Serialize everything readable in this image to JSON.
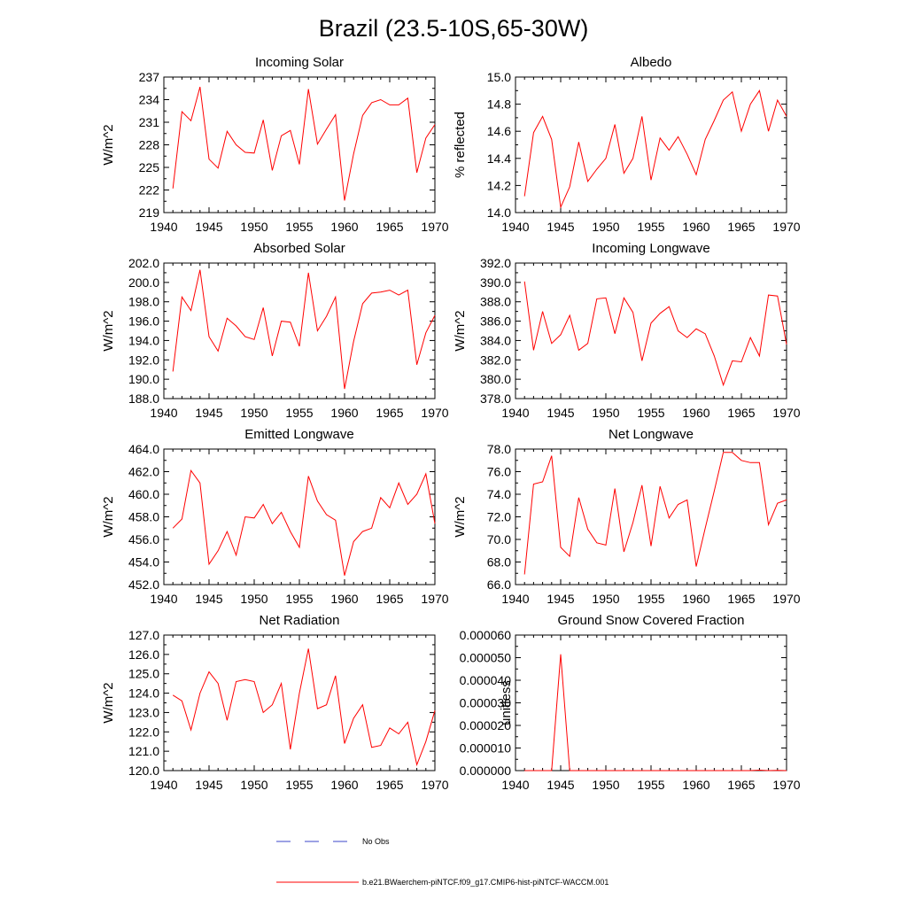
{
  "figure": {
    "title": "Brazil (23.5-10S,65-30W)",
    "series_color": "#ff0000",
    "noobs_color": "#3b45c8",
    "legend": [
      {
        "label": "No Obs",
        "style": "dashed",
        "color": "#3b45c8"
      },
      {
        "label": "b.e21.BWaerchem-piNTCF.f09_g17.CMIP6-hist-piNTCF-WACCM.001",
        "style": "solid",
        "color": "#ff0000"
      }
    ]
  },
  "chart_data": [
    {
      "type": "line",
      "title": "Incoming Solar",
      "xlabel": "",
      "ylabel": "W/m^2",
      "xlim": [
        1940,
        1970
      ],
      "ylim": [
        219,
        237
      ],
      "xticks": [
        1940,
        1945,
        1950,
        1955,
        1960,
        1965,
        1970
      ],
      "yticks": [
        "219",
        "222",
        "225",
        "228",
        "231",
        "234",
        "237"
      ],
      "x": [
        1941,
        1942,
        1943,
        1944,
        1945,
        1946,
        1947,
        1948,
        1949,
        1950,
        1951,
        1952,
        1953,
        1954,
        1955,
        1956,
        1957,
        1958,
        1959,
        1960,
        1961,
        1962,
        1963,
        1964,
        1965,
        1966,
        1967,
        1968,
        1969,
        1970
      ],
      "y": [
        222.2,
        232.4,
        231.2,
        235.7,
        226.1,
        224.9,
        229.8,
        228.0,
        227.0,
        226.9,
        231.3,
        224.6,
        229.2,
        229.9,
        225.4,
        235.4,
        228.1,
        230.1,
        232.0,
        220.6,
        226.8,
        231.9,
        233.6,
        234.0,
        233.3,
        233.3,
        234.2,
        224.3,
        228.9,
        230.7
      ]
    },
    {
      "type": "line",
      "title": "Albedo",
      "xlabel": "",
      "ylabel": "% reflected",
      "xlim": [
        1940,
        1970
      ],
      "ylim": [
        14.0,
        15.0
      ],
      "xticks": [
        1940,
        1945,
        1950,
        1955,
        1960,
        1965,
        1970
      ],
      "yticks": [
        "14.0",
        "14.2",
        "14.4",
        "14.6",
        "14.8",
        "15.0"
      ],
      "x": [
        1941,
        1942,
        1943,
        1944,
        1945,
        1946,
        1947,
        1948,
        1949,
        1950,
        1951,
        1952,
        1953,
        1954,
        1955,
        1956,
        1957,
        1958,
        1959,
        1960,
        1961,
        1962,
        1963,
        1964,
        1965,
        1966,
        1967,
        1968,
        1969,
        1970
      ],
      "y": [
        14.12,
        14.59,
        14.71,
        14.54,
        14.04,
        14.19,
        14.52,
        14.23,
        14.32,
        14.4,
        14.65,
        14.29,
        14.4,
        14.71,
        14.24,
        14.55,
        14.46,
        14.56,
        14.43,
        14.28,
        14.54,
        14.68,
        14.83,
        14.89,
        14.6,
        14.8,
        14.9,
        14.6,
        14.83,
        14.71
      ]
    },
    {
      "type": "line",
      "title": "Absorbed Solar",
      "xlabel": "",
      "ylabel": "W/m^2",
      "xlim": [
        1940,
        1970
      ],
      "ylim": [
        188.0,
        202.0
      ],
      "xticks": [
        1940,
        1945,
        1950,
        1955,
        1960,
        1965,
        1970
      ],
      "yticks": [
        "188.0",
        "190.0",
        "192.0",
        "194.0",
        "196.0",
        "198.0",
        "200.0",
        "202.0"
      ],
      "x": [
        1941,
        1942,
        1943,
        1944,
        1945,
        1946,
        1947,
        1948,
        1949,
        1950,
        1951,
        1952,
        1953,
        1954,
        1955,
        1956,
        1957,
        1958,
        1959,
        1960,
        1961,
        1962,
        1963,
        1964,
        1965,
        1966,
        1967,
        1968,
        1969,
        1970
      ],
      "y": [
        190.8,
        198.5,
        197.1,
        201.3,
        194.4,
        192.9,
        196.3,
        195.5,
        194.4,
        194.1,
        197.4,
        192.4,
        196.0,
        195.9,
        193.4,
        201.0,
        195.0,
        196.5,
        198.5,
        189.0,
        193.9,
        197.8,
        198.9,
        199.0,
        199.2,
        198.7,
        199.2,
        191.5,
        194.8,
        196.6
      ]
    },
    {
      "type": "line",
      "title": "Incoming Longwave",
      "xlabel": "",
      "ylabel": "W/m^2",
      "xlim": [
        1940,
        1970
      ],
      "ylim": [
        378.0,
        392.0
      ],
      "xticks": [
        1940,
        1945,
        1950,
        1955,
        1960,
        1965,
        1970
      ],
      "yticks": [
        "378.0",
        "380.0",
        "382.0",
        "384.0",
        "386.0",
        "388.0",
        "390.0",
        "392.0"
      ],
      "x": [
        1941,
        1942,
        1943,
        1944,
        1945,
        1946,
        1947,
        1948,
        1949,
        1950,
        1951,
        1952,
        1953,
        1954,
        1955,
        1956,
        1957,
        1958,
        1959,
        1960,
        1961,
        1962,
        1963,
        1964,
        1965,
        1966,
        1967,
        1968,
        1969,
        1970
      ],
      "y": [
        390.1,
        383.0,
        387.0,
        383.7,
        384.6,
        386.6,
        383.0,
        383.7,
        388.3,
        388.4,
        384.7,
        388.4,
        386.9,
        381.9,
        385.8,
        386.8,
        387.5,
        385.0,
        384.3,
        385.2,
        384.7,
        382.4,
        379.4,
        381.9,
        381.8,
        384.3,
        382.4,
        388.7,
        388.6,
        383.6
      ]
    },
    {
      "type": "line",
      "title": "Emitted Longwave",
      "xlabel": "",
      "ylabel": "W/m^2",
      "xlim": [
        1940,
        1970
      ],
      "ylim": [
        452.0,
        464.0
      ],
      "xticks": [
        1940,
        1945,
        1950,
        1955,
        1960,
        1965,
        1970
      ],
      "yticks": [
        "452.0",
        "454.0",
        "456.0",
        "458.0",
        "460.0",
        "462.0",
        "464.0"
      ],
      "x": [
        1941,
        1942,
        1943,
        1944,
        1945,
        1946,
        1947,
        1948,
        1949,
        1950,
        1951,
        1952,
        1953,
        1954,
        1955,
        1956,
        1957,
        1958,
        1959,
        1960,
        1961,
        1962,
        1963,
        1964,
        1965,
        1966,
        1967,
        1968,
        1969,
        1970
      ],
      "y": [
        457.0,
        457.8,
        462.1,
        461.0,
        453.8,
        455.0,
        456.7,
        454.6,
        458.0,
        457.9,
        459.1,
        457.4,
        458.4,
        456.7,
        455.3,
        461.6,
        459.4,
        458.2,
        457.7,
        452.8,
        455.8,
        456.7,
        457.0,
        459.7,
        458.8,
        461.0,
        459.1,
        460.0,
        461.8,
        457.4
      ]
    },
    {
      "type": "line",
      "title": "Net Longwave",
      "xlabel": "",
      "ylabel": "W/m^2",
      "xlim": [
        1940,
        1970
      ],
      "ylim": [
        66.0,
        78.0
      ],
      "xticks": [
        1940,
        1945,
        1950,
        1955,
        1960,
        1965,
        1970
      ],
      "yticks": [
        "66.0",
        "68.0",
        "70.0",
        "72.0",
        "74.0",
        "76.0",
        "78.0"
      ],
      "x": [
        1941,
        1942,
        1943,
        1944,
        1945,
        1946,
        1947,
        1948,
        1949,
        1950,
        1951,
        1952,
        1953,
        1954,
        1955,
        1956,
        1957,
        1958,
        1959,
        1960,
        1961,
        1962,
        1963,
        1964,
        1965,
        1966,
        1967,
        1968,
        1969,
        1970
      ],
      "y": [
        66.9,
        74.9,
        75.1,
        77.4,
        69.3,
        68.5,
        73.7,
        70.9,
        69.7,
        69.5,
        74.5,
        68.9,
        71.5,
        74.8,
        69.4,
        74.7,
        71.9,
        73.1,
        73.5,
        67.6,
        71.0,
        74.3,
        77.7,
        77.7,
        77.0,
        76.8,
        76.8,
        71.3,
        73.2,
        73.5
      ]
    },
    {
      "type": "line",
      "title": "Net Radiation",
      "xlabel": "",
      "ylabel": "W/m^2",
      "xlim": [
        1940,
        1970
      ],
      "ylim": [
        120.0,
        127.0
      ],
      "xticks": [
        1940,
        1945,
        1950,
        1955,
        1960,
        1965,
        1970
      ],
      "yticks": [
        "120.0",
        "121.0",
        "122.0",
        "123.0",
        "124.0",
        "125.0",
        "126.0",
        "127.0"
      ],
      "x": [
        1941,
        1942,
        1943,
        1944,
        1945,
        1946,
        1947,
        1948,
        1949,
        1950,
        1951,
        1952,
        1953,
        1954,
        1955,
        1956,
        1957,
        1958,
        1959,
        1960,
        1961,
        1962,
        1963,
        1964,
        1965,
        1966,
        1967,
        1968,
        1969,
        1970
      ],
      "y": [
        123.9,
        123.6,
        122.1,
        124.0,
        125.1,
        124.5,
        122.6,
        124.6,
        124.7,
        124.6,
        123.0,
        123.4,
        124.5,
        121.1,
        124.0,
        126.3,
        123.2,
        123.4,
        124.9,
        121.4,
        122.7,
        123.4,
        121.2,
        121.3,
        122.2,
        121.9,
        122.5,
        120.3,
        121.5,
        123.1
      ]
    },
    {
      "type": "line",
      "title": "Ground Snow Covered Fraction",
      "xlabel": "",
      "ylabel": "unitless",
      "xlim": [
        1940,
        1970
      ],
      "ylim": [
        0,
        6e-05
      ],
      "xticks": [
        1940,
        1945,
        1950,
        1955,
        1960,
        1965,
        1970
      ],
      "yticks": [
        "0.000000",
        "0.000010",
        "0.000020",
        "0.000030",
        "0.000040",
        "0.000050",
        "0.000060"
      ],
      "x": [
        1941,
        1942,
        1943,
        1944,
        1945,
        1946,
        1947,
        1948,
        1949,
        1950,
        1951,
        1952,
        1953,
        1954,
        1955,
        1956,
        1957,
        1958,
        1959,
        1960,
        1961,
        1962,
        1963,
        1964,
        1965,
        1966,
        1967,
        1968,
        1969,
        1970
      ],
      "y": [
        0,
        0,
        0,
        0,
        5.15e-05,
        0,
        0,
        0,
        0,
        0,
        0,
        0,
        0,
        0,
        0,
        0,
        0,
        0,
        0,
        0,
        0,
        0,
        0,
        0,
        0,
        0,
        2e-07,
        0,
        1e-07,
        0
      ]
    }
  ]
}
